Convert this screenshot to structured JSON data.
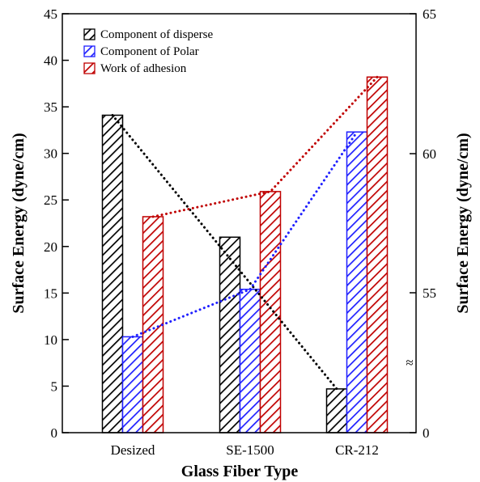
{
  "chart_data": {
    "type": "bar",
    "categories": [
      "Desized",
      "SE-1500",
      "CR-212"
    ],
    "series": [
      {
        "name": "Component of disperse",
        "values": [
          34.1,
          21.0,
          4.7
        ],
        "color": "#000000"
      },
      {
        "name": "Component of Polar",
        "values": [
          10.3,
          15.4,
          32.3
        ],
        "color": "#1f1fff"
      },
      {
        "name": "Work of adhesion",
        "values": [
          23.2,
          25.9,
          38.2
        ],
        "color": "#c00000"
      }
    ],
    "trend_lines": [
      {
        "series": "Component of disperse",
        "color": "#000000",
        "points": [
          [
            0,
            34.1
          ],
          [
            2,
            4.7
          ]
        ]
      },
      {
        "series": "Component of Polar",
        "color": "#1f1fff",
        "points": [
          [
            0,
            10.3
          ],
          [
            1,
            15.4
          ],
          [
            2,
            32.3
          ]
        ]
      },
      {
        "series": "Work of adhesion",
        "color": "#c00000",
        "points": [
          [
            0,
            23.2
          ],
          [
            1,
            25.9
          ],
          [
            2,
            38.2
          ]
        ]
      }
    ],
    "xlabel": "Glass Fiber Type",
    "ylabel": "Surface Energy (dyne/cm)",
    "ylim": [
      0,
      45
    ],
    "yticks": [
      "0",
      "5",
      "10",
      "15",
      "20",
      "25",
      "30",
      "35",
      "40",
      "45"
    ],
    "y2label": "Surface Energy (dyne/cm)",
    "y2ticks": [
      "0",
      "55",
      "60",
      "65"
    ],
    "y2_break_symbol": "≈",
    "legend_position": "top-left",
    "grid": false
  }
}
